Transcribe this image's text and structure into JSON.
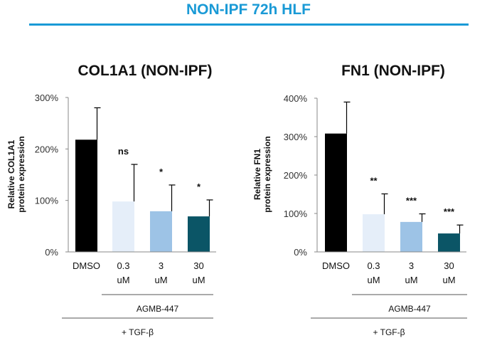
{
  "page": {
    "title": "NON-IPF 72h HLF"
  },
  "chart_data": [
    {
      "type": "bar",
      "title": "COL1A1 (NON-IPF)",
      "ylabel": [
        "Relative COL1A1",
        "protein expression"
      ],
      "ylim": [
        0,
        300
      ],
      "yticks": [
        0,
        100,
        200,
        300
      ],
      "ytick_labels": [
        "0%",
        "100%",
        "200%",
        "300%"
      ],
      "categories": [
        [
          "DMSO"
        ],
        [
          "0.3",
          "uM"
        ],
        [
          "3",
          "uM"
        ],
        [
          "30",
          "uM"
        ]
      ],
      "values": [
        218,
        98,
        79,
        69
      ],
      "errors": [
        62,
        72,
        51,
        32
      ],
      "significance": [
        "",
        "ns",
        "*",
        "*"
      ],
      "colors": [
        "#000000",
        "#e5eef9",
        "#9dc3e6",
        "#0b5566"
      ],
      "group_label": "AGMB-447",
      "treatment_label": "+ TGF-β"
    },
    {
      "type": "bar",
      "title": "FN1 (NON-IPF)",
      "ylabel": [
        "Relative FN1",
        "protein expression"
      ],
      "ylim": [
        0,
        400
      ],
      "yticks": [
        0,
        100,
        200,
        300,
        400
      ],
      "ytick_labels": [
        "0%",
        "100%",
        "200%",
        "300%",
        "400%"
      ],
      "categories": [
        [
          "DMSO"
        ],
        [
          "0.3",
          "uM"
        ],
        [
          "3",
          "uM"
        ],
        [
          "30",
          "uM"
        ]
      ],
      "values": [
        308,
        98,
        78,
        48
      ],
      "errors": [
        82,
        53,
        21,
        22
      ],
      "significance": [
        "",
        "**",
        "***",
        "***"
      ],
      "colors": [
        "#000000",
        "#e5eef9",
        "#9dc3e6",
        "#0b5566"
      ],
      "group_label": "AGMB-447",
      "treatment_label": "+ TGF-β"
    }
  ]
}
